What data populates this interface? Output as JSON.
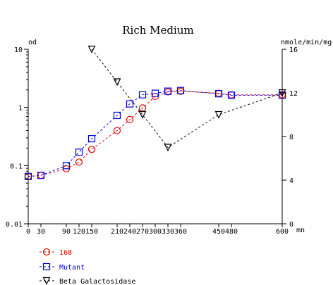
{
  "chart_data": {
    "type": "line",
    "title": "Rich Medium",
    "x_unit": "mn",
    "left_axis": {
      "label": "od",
      "scale": "log",
      "range": [
        0.01,
        10
      ],
      "ticks": [
        {
          "value": 10,
          "label": "10"
        },
        {
          "value": 1,
          "label": "1"
        },
        {
          "value": 0.1,
          "label": "0.1"
        },
        {
          "value": 0.01,
          "label": "0.01"
        }
      ]
    },
    "right_axis": {
      "label": "nmole/min/mg",
      "scale": "linear",
      "range": [
        0,
        16
      ],
      "ticks": [
        {
          "value": 16,
          "label": "16"
        },
        {
          "value": 12,
          "label": "12"
        },
        {
          "value": 8,
          "label": "8"
        },
        {
          "value": 4,
          "label": "4"
        },
        {
          "value": 0,
          "label": "0"
        }
      ]
    },
    "x_axis": {
      "range": [
        0,
        600
      ],
      "ticks": [
        {
          "value": 0,
          "label": "0"
        },
        {
          "value": 30,
          "label": "30"
        },
        {
          "value": 90,
          "label": "90"
        },
        {
          "value": 120,
          "label": "120"
        },
        {
          "value": 150,
          "label": "150"
        },
        {
          "value": 210,
          "label": "210"
        },
        {
          "value": 240,
          "label": "240"
        },
        {
          "value": 270,
          "label": "270"
        },
        {
          "value": 300,
          "label": "300"
        },
        {
          "value": 330,
          "label": "330"
        },
        {
          "value": 360,
          "label": "360"
        },
        {
          "value": 450,
          "label": "450"
        },
        {
          "value": 480,
          "label": "480"
        },
        {
          "value": 600,
          "label": "600"
        }
      ]
    },
    "grid": false,
    "legend_position": "bottom-left",
    "series": [
      {
        "name": "168",
        "axis": "left",
        "marker": "circle",
        "color": "#e00000",
        "x": [
          0,
          30,
          90,
          120,
          150,
          210,
          240,
          270,
          300,
          330,
          360,
          450,
          480,
          600
        ],
        "values": [
          0.065,
          0.068,
          0.088,
          0.115,
          0.19,
          0.4,
          0.62,
          0.98,
          1.55,
          1.85,
          1.9,
          1.75,
          1.65,
          1.65
        ]
      },
      {
        "name": "Mutant",
        "axis": "left",
        "marker": "square",
        "color": "#0000e0",
        "x": [
          0,
          30,
          90,
          120,
          150,
          210,
          240,
          270,
          300,
          330,
          360,
          450,
          480,
          600
        ],
        "values": [
          0.065,
          0.068,
          0.1,
          0.17,
          0.29,
          0.73,
          1.15,
          1.65,
          1.75,
          1.9,
          1.95,
          1.72,
          1.62,
          1.62
        ]
      },
      {
        "name": "Beta Galactosidase",
        "axis": "right",
        "marker": "triangle-down",
        "color": "#000000",
        "x": [
          150,
          210,
          270,
          330,
          450,
          600
        ],
        "values": [
          16,
          13,
          10,
          7,
          10,
          12
        ]
      }
    ]
  },
  "colors": {
    "axis": "#000000",
    "series_168": "#e00000",
    "series_mutant": "#0000e0",
    "series_beta": "#000000"
  }
}
